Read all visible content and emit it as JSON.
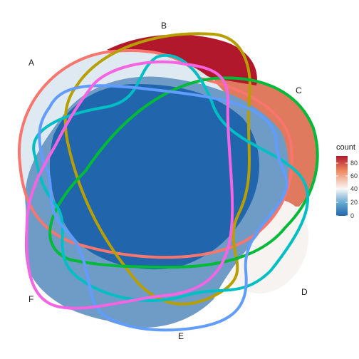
{
  "sets": [
    {
      "id": "A",
      "label": "A",
      "color": "#f8766d"
    },
    {
      "id": "B",
      "label": "B",
      "color": "#b79f00"
    },
    {
      "id": "C",
      "label": "C",
      "color": "#00ba38"
    },
    {
      "id": "D",
      "label": "D",
      "color": "#00bfc4"
    },
    {
      "id": "E",
      "label": "E",
      "color": "#619cff"
    },
    {
      "id": "F",
      "label": "F",
      "color": "#f564e3"
    }
  ],
  "legend": {
    "title": "count",
    "ticks": [
      "80",
      "60",
      "40",
      "20",
      "0"
    ],
    "gradient": [
      "#b2182b",
      "#ef8a62",
      "#f7f7f7",
      "#67a9cf",
      "#2166ac"
    ]
  },
  "region_fills": {
    "high": "#b2182b",
    "mid_high": "#e07a5f",
    "light_pink": "#f4e3dc",
    "near_white": "#f7f3f1",
    "pale_blue": "#dfe9f2",
    "mid_blue": "#6e9cc6",
    "deep_blue": "#2166ac"
  }
}
